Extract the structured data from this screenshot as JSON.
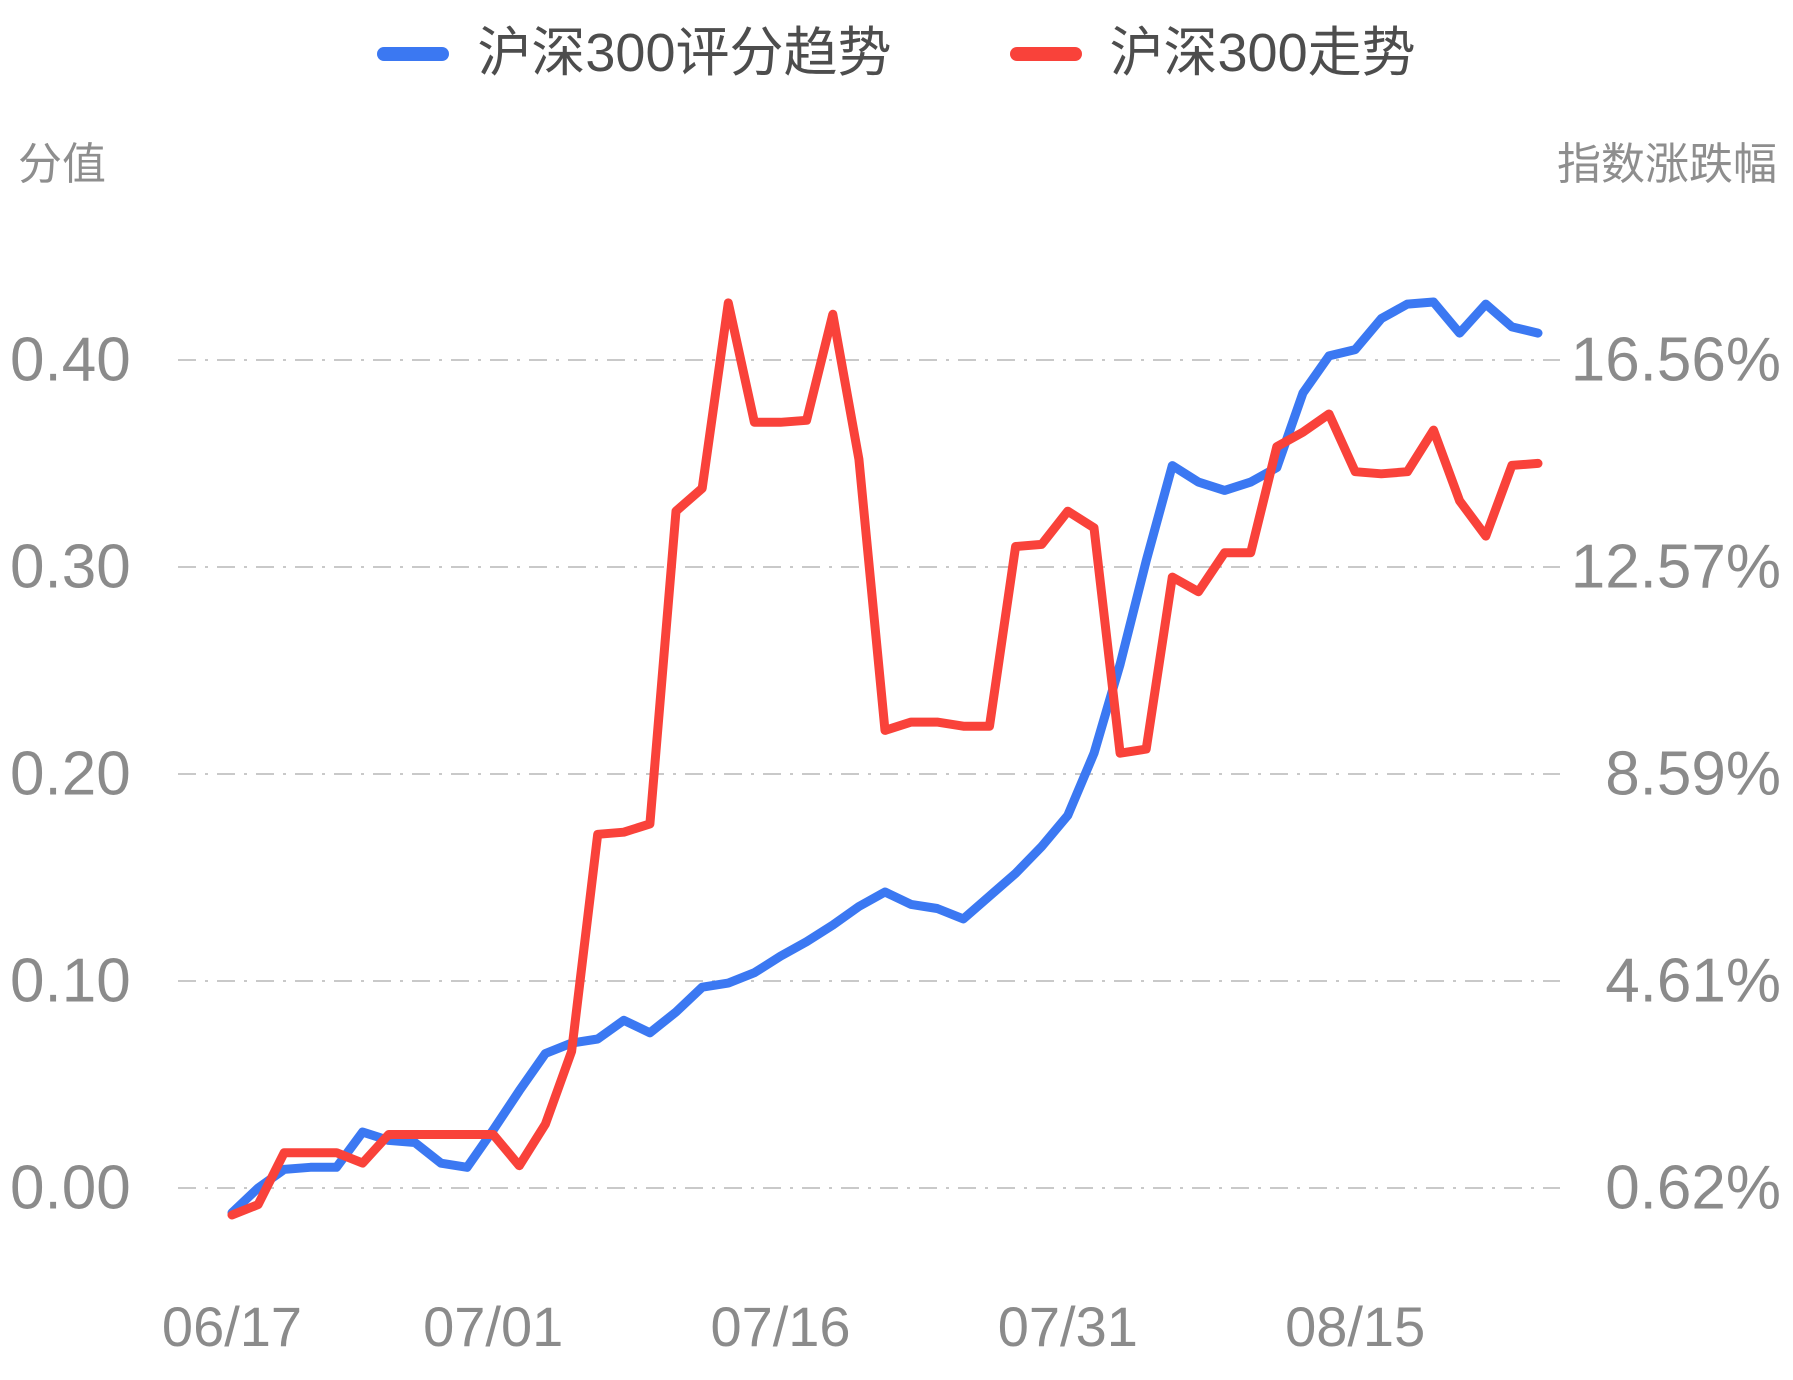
{
  "legend": {
    "items": [
      {
        "label": "沪深300评分趋势",
        "color": "#3B78F2"
      },
      {
        "label": "沪深300走势",
        "color": "#F9423A"
      }
    ]
  },
  "chart_data": {
    "type": "line",
    "title": "",
    "grid": "horizontal dash-dot gridlines",
    "legend_position": "top-center",
    "x": [
      "06/17",
      "06/18",
      "06/19",
      "06/20",
      "06/21",
      "06/24",
      "06/25",
      "06/26",
      "06/27",
      "06/28",
      "07/01",
      "07/02",
      "07/03",
      "07/04",
      "07/05",
      "07/08",
      "07/09",
      "07/10",
      "07/11",
      "07/12",
      "07/15",
      "07/16",
      "07/17",
      "07/18",
      "07/19",
      "07/22",
      "07/23",
      "07/24",
      "07/25",
      "07/26",
      "07/29",
      "07/30",
      "07/31",
      "08/01",
      "08/02",
      "08/05",
      "08/06",
      "08/07",
      "08/08",
      "08/09",
      "08/12",
      "08/13",
      "08/14",
      "08/15",
      "08/16",
      "08/19",
      "08/20",
      "08/21",
      "08/22",
      "08/23",
      "08/26"
    ],
    "x_tick_labels": [
      "06/17",
      "07/01",
      "07/16",
      "07/31",
      "08/15"
    ],
    "x_tick_indices": [
      0,
      10,
      21,
      32,
      43
    ],
    "left_axis": {
      "name": "分值",
      "tick_labels": [
        "0.00",
        "0.10",
        "0.20",
        "0.30",
        "0.40"
      ],
      "ticks": [
        0.0,
        0.1,
        0.2,
        0.3,
        0.4
      ]
    },
    "right_axis": {
      "name": "指数涨跌幅",
      "tick_labels": [
        "0.62%",
        "4.61%",
        "8.59%",
        "12.57%",
        "16.56%"
      ],
      "ticks": [
        0.62,
        4.61,
        8.59,
        12.57,
        16.56
      ]
    },
    "series": [
      {
        "name": "沪深300评分趋势",
        "axis": "left_axis",
        "color": "#3B78F2",
        "values": [
          -0.012,
          0.0,
          0.009,
          0.01,
          0.01,
          0.027,
          0.023,
          0.022,
          0.012,
          0.01,
          0.028,
          0.047,
          0.065,
          0.07,
          0.072,
          0.081,
          0.075,
          0.085,
          0.097,
          0.099,
          0.104,
          0.112,
          0.119,
          0.127,
          0.136,
          0.143,
          0.137,
          0.135,
          0.13,
          0.141,
          0.152,
          0.165,
          0.18,
          0.21,
          0.253,
          0.303,
          0.349,
          0.341,
          0.337,
          0.341,
          0.348,
          0.384,
          0.402,
          0.405,
          0.42,
          0.427,
          0.428,
          0.413,
          0.427,
          0.416,
          0.413
        ]
      },
      {
        "name": "沪深300走势",
        "axis": "right_axis",
        "unit": "%",
        "color": "#F9423A",
        "values": [
          0.1,
          0.3,
          1.3,
          1.3,
          1.3,
          1.1,
          1.65,
          1.65,
          1.65,
          1.65,
          1.65,
          1.05,
          1.85,
          3.25,
          7.43,
          7.47,
          7.63,
          13.65,
          14.09,
          17.66,
          15.36,
          15.36,
          15.4,
          17.44,
          14.65,
          9.43,
          9.59,
          9.59,
          9.51,
          9.51,
          12.97,
          13.01,
          13.65,
          13.33,
          8.99,
          9.07,
          12.38,
          12.1,
          12.85,
          12.85,
          14.89,
          15.17,
          15.52,
          14.41,
          14.37,
          14.41,
          15.21,
          13.85,
          13.17,
          14.53,
          14.57
        ]
      }
    ]
  }
}
